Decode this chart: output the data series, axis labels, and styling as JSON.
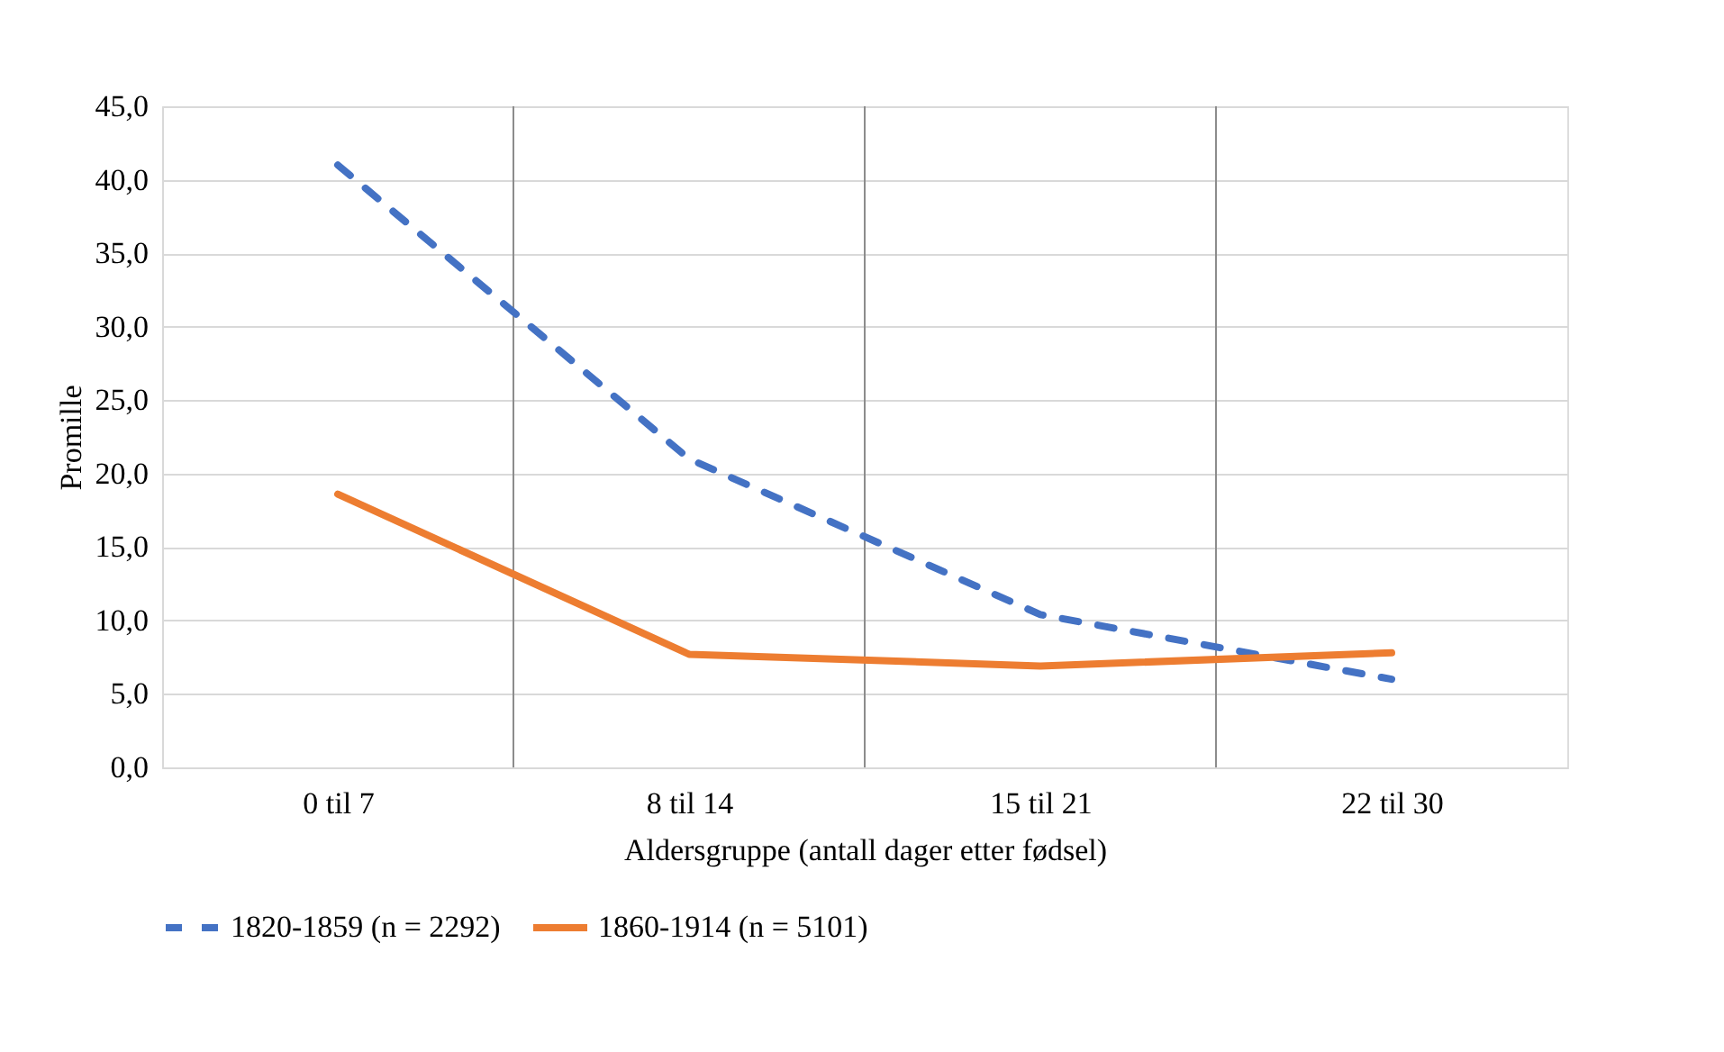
{
  "chart_data": {
    "type": "line",
    "xlabel": "Aldersgruppe (antall dager etter fødsel)",
    "ylabel": "Promille",
    "categories": [
      "0 til 7",
      "8 til 14",
      "15 til 21",
      "22 til 30"
    ],
    "series": [
      {
        "name": "1820-1859 (n = 2292)",
        "color": "#4472c4",
        "line_style": "dashed",
        "values": [
          41.0,
          21.0,
          10.4,
          6.0
        ]
      },
      {
        "name": "1860-1914 (n = 5101)",
        "color": "#ed7d31",
        "line_style": "solid",
        "values": [
          18.6,
          7.7,
          6.9,
          7.8
        ]
      }
    ],
    "ylim": [
      0,
      45
    ],
    "yticks": [
      {
        "value": 0,
        "label": "0,0"
      },
      {
        "value": 5,
        "label": "5,0"
      },
      {
        "value": 10,
        "label": "10,0"
      },
      {
        "value": 15,
        "label": "15,0"
      },
      {
        "value": 20,
        "label": "20,0"
      },
      {
        "value": 25,
        "label": "25,0"
      },
      {
        "value": 30,
        "label": "30,0"
      },
      {
        "value": 35,
        "label": "35,0"
      },
      {
        "value": 40,
        "label": "40,0"
      },
      {
        "value": 45,
        "label": "45,0"
      }
    ],
    "grid": true,
    "legend": "bottom",
    "marker": "none"
  }
}
